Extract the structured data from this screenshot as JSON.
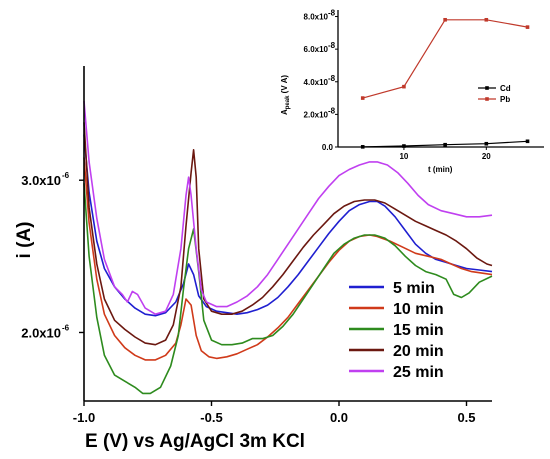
{
  "chart_data": [
    {
      "type": "line",
      "xlabel": "E (V) vs Ag/AgCl 3m KCl",
      "ylabel": "i (A)",
      "xlim": [
        -1.0,
        0.6
      ],
      "ylim": [
        1.55e-06,
        3.75e-06
      ],
      "x_ticks": [
        -1.0,
        -0.5,
        0.0,
        0.5
      ],
      "x_tick_labels": [
        "-1.0",
        "-0.5",
        "0.0",
        "0.5"
      ],
      "y_ticks": [
        2e-06,
        3e-06
      ],
      "y_tick_labels": [
        "2.0x10",
        "3.0x10"
      ],
      "y_tick_exponent": "-6",
      "legend_placement": "bottom-right",
      "series": [
        {
          "name": "5 min",
          "color": "#1f1fd0",
          "points": [
            [
              -1.0,
              3.3e-06
            ],
            [
              -0.98,
              2.92e-06
            ],
            [
              -0.95,
              2.6e-06
            ],
            [
              -0.92,
              2.42e-06
            ],
            [
              -0.88,
              2.3e-06
            ],
            [
              -0.84,
              2.22e-06
            ],
            [
              -0.8,
              2.16e-06
            ],
            [
              -0.76,
              2.12e-06
            ],
            [
              -0.72,
              2.11e-06
            ],
            [
              -0.68,
              2.13e-06
            ],
            [
              -0.64,
              2.2e-06
            ],
            [
              -0.61,
              2.32e-06
            ],
            [
              -0.59,
              2.45e-06
            ],
            [
              -0.57,
              2.38e-06
            ],
            [
              -0.55,
              2.24e-06
            ],
            [
              -0.52,
              2.17e-06
            ],
            [
              -0.48,
              2.14e-06
            ],
            [
              -0.44,
              2.13e-06
            ],
            [
              -0.4,
              2.12e-06
            ],
            [
              -0.36,
              2.13e-06
            ],
            [
              -0.32,
              2.15e-06
            ],
            [
              -0.28,
              2.18e-06
            ],
            [
              -0.24,
              2.23e-06
            ],
            [
              -0.2,
              2.3e-06
            ],
            [
              -0.16,
              2.38e-06
            ],
            [
              -0.12,
              2.47e-06
            ],
            [
              -0.08,
              2.56e-06
            ],
            [
              -0.04,
              2.65e-06
            ],
            [
              0.0,
              2.73e-06
            ],
            [
              0.04,
              2.8e-06
            ],
            [
              0.08,
              2.84e-06
            ],
            [
              0.12,
              2.86e-06
            ],
            [
              0.15,
              2.86e-06
            ],
            [
              0.18,
              2.83e-06
            ],
            [
              0.22,
              2.76e-06
            ],
            [
              0.26,
              2.67e-06
            ],
            [
              0.3,
              2.58e-06
            ],
            [
              0.34,
              2.52e-06
            ],
            [
              0.38,
              2.48e-06
            ],
            [
              0.42,
              2.46e-06
            ],
            [
              0.46,
              2.44e-06
            ],
            [
              0.5,
              2.42e-06
            ],
            [
              0.55,
              2.41e-06
            ],
            [
              0.6,
              2.4e-06
            ]
          ]
        },
        {
          "name": "10 min",
          "color": "#d03a1a",
          "points": [
            [
              -1.0,
              3.15e-06
            ],
            [
              -0.98,
              2.72e-06
            ],
            [
              -0.95,
              2.35e-06
            ],
            [
              -0.92,
              2.12e-06
            ],
            [
              -0.88,
              1.98e-06
            ],
            [
              -0.84,
              1.9e-06
            ],
            [
              -0.8,
              1.85e-06
            ],
            [
              -0.76,
              1.82e-06
            ],
            [
              -0.72,
              1.82e-06
            ],
            [
              -0.68,
              1.85e-06
            ],
            [
              -0.64,
              1.93e-06
            ],
            [
              -0.62,
              2.05e-06
            ],
            [
              -0.6,
              2.22e-06
            ],
            [
              -0.58,
              2.18e-06
            ],
            [
              -0.56,
              1.98e-06
            ],
            [
              -0.54,
              1.88e-06
            ],
            [
              -0.51,
              1.84e-06
            ],
            [
              -0.48,
              1.83e-06
            ],
            [
              -0.44,
              1.84e-06
            ],
            [
              -0.4,
              1.86e-06
            ],
            [
              -0.36,
              1.89e-06
            ],
            [
              -0.32,
              1.92e-06
            ],
            [
              -0.28,
              1.97e-06
            ],
            [
              -0.24,
              2.03e-06
            ],
            [
              -0.2,
              2.1e-06
            ],
            [
              -0.16,
              2.19e-06
            ],
            [
              -0.12,
              2.28e-06
            ],
            [
              -0.08,
              2.37e-06
            ],
            [
              -0.04,
              2.46e-06
            ],
            [
              0.0,
              2.54e-06
            ],
            [
              0.04,
              2.6e-06
            ],
            [
              0.08,
              2.63e-06
            ],
            [
              0.12,
              2.64e-06
            ],
            [
              0.15,
              2.63e-06
            ],
            [
              0.2,
              2.6e-06
            ],
            [
              0.25,
              2.56e-06
            ],
            [
              0.3,
              2.52e-06
            ],
            [
              0.35,
              2.5e-06
            ],
            [
              0.4,
              2.48e-06
            ],
            [
              0.44,
              2.45e-06
            ],
            [
              0.48,
              2.42e-06
            ],
            [
              0.52,
              2.4e-06
            ],
            [
              0.56,
              2.39e-06
            ],
            [
              0.6,
              2.38e-06
            ]
          ]
        },
        {
          "name": "15 min",
          "color": "#2e8b1e",
          "points": [
            [
              -1.0,
              2.98e-06
            ],
            [
              -0.98,
              2.5e-06
            ],
            [
              -0.95,
              2.1e-06
            ],
            [
              -0.92,
              1.85e-06
            ],
            [
              -0.88,
              1.72e-06
            ],
            [
              -0.84,
              1.68e-06
            ],
            [
              -0.8,
              1.64e-06
            ],
            [
              -0.77,
              1.6e-06
            ],
            [
              -0.74,
              1.6e-06
            ],
            [
              -0.7,
              1.64e-06
            ],
            [
              -0.66,
              1.78e-06
            ],
            [
              -0.63,
              1.98e-06
            ],
            [
              -0.61,
              2.28e-06
            ],
            [
              -0.59,
              2.55e-06
            ],
            [
              -0.57,
              2.68e-06
            ],
            [
              -0.55,
              2.4e-06
            ],
            [
              -0.53,
              2.08e-06
            ],
            [
              -0.5,
              1.95e-06
            ],
            [
              -0.46,
              1.92e-06
            ],
            [
              -0.42,
              1.92e-06
            ],
            [
              -0.38,
              1.93e-06
            ],
            [
              -0.34,
              1.96e-06
            ],
            [
              -0.3,
              1.96e-06
            ],
            [
              -0.26,
              1.98e-06
            ],
            [
              -0.22,
              2.04e-06
            ],
            [
              -0.18,
              2.12e-06
            ],
            [
              -0.14,
              2.22e-06
            ],
            [
              -0.1,
              2.32e-06
            ],
            [
              -0.06,
              2.42e-06
            ],
            [
              -0.02,
              2.52e-06
            ],
            [
              0.02,
              2.58e-06
            ],
            [
              0.06,
              2.62e-06
            ],
            [
              0.1,
              2.64e-06
            ],
            [
              0.14,
              2.64e-06
            ],
            [
              0.18,
              2.62e-06
            ],
            [
              0.22,
              2.57e-06
            ],
            [
              0.26,
              2.5e-06
            ],
            [
              0.3,
              2.44e-06
            ],
            [
              0.34,
              2.4e-06
            ],
            [
              0.38,
              2.38e-06
            ],
            [
              0.42,
              2.35e-06
            ],
            [
              0.45,
              2.25e-06
            ],
            [
              0.48,
              2.23e-06
            ],
            [
              0.51,
              2.26e-06
            ],
            [
              0.55,
              2.33e-06
            ],
            [
              0.6,
              2.37e-06
            ]
          ]
        },
        {
          "name": "20 min",
          "color": "#6b1810",
          "points": [
            [
              -1.0,
              3.38e-06
            ],
            [
              -0.98,
              2.82e-06
            ],
            [
              -0.95,
              2.45e-06
            ],
            [
              -0.92,
              2.22e-06
            ],
            [
              -0.88,
              2.08e-06
            ],
            [
              -0.84,
              2.02e-06
            ],
            [
              -0.8,
              1.97e-06
            ],
            [
              -0.76,
              1.93e-06
            ],
            [
              -0.72,
              1.92e-06
            ],
            [
              -0.68,
              1.95e-06
            ],
            [
              -0.65,
              2.05e-06
            ],
            [
              -0.62,
              2.3e-06
            ],
            [
              -0.6,
              2.7e-06
            ],
            [
              -0.58,
              3.05e-06
            ],
            [
              -0.57,
              3.2e-06
            ],
            [
              -0.56,
              3.02e-06
            ],
            [
              -0.55,
              2.55e-06
            ],
            [
              -0.53,
              2.22e-06
            ],
            [
              -0.5,
              2.14e-06
            ],
            [
              -0.46,
              2.12e-06
            ],
            [
              -0.42,
              2.12e-06
            ],
            [
              -0.38,
              2.14e-06
            ],
            [
              -0.34,
              2.18e-06
            ],
            [
              -0.3,
              2.23e-06
            ],
            [
              -0.26,
              2.3e-06
            ],
            [
              -0.22,
              2.38e-06
            ],
            [
              -0.18,
              2.47e-06
            ],
            [
              -0.14,
              2.56e-06
            ],
            [
              -0.1,
              2.64e-06
            ],
            [
              -0.06,
              2.71e-06
            ],
            [
              -0.02,
              2.78e-06
            ],
            [
              0.02,
              2.83e-06
            ],
            [
              0.06,
              2.86e-06
            ],
            [
              0.1,
              2.87e-06
            ],
            [
              0.14,
              2.87e-06
            ],
            [
              0.18,
              2.85e-06
            ],
            [
              0.22,
              2.81e-06
            ],
            [
              0.26,
              2.77e-06
            ],
            [
              0.3,
              2.73e-06
            ],
            [
              0.34,
              2.7e-06
            ],
            [
              0.38,
              2.67e-06
            ],
            [
              0.42,
              2.64e-06
            ],
            [
              0.46,
              2.6e-06
            ],
            [
              0.5,
              2.55e-06
            ],
            [
              0.54,
              2.49e-06
            ],
            [
              0.58,
              2.45e-06
            ],
            [
              0.6,
              2.44e-06
            ]
          ]
        },
        {
          "name": "25 min",
          "color": "#c040f0",
          "points": [
            [
              -1.0,
              3.52e-06
            ],
            [
              -0.98,
              3.12e-06
            ],
            [
              -0.95,
              2.75e-06
            ],
            [
              -0.92,
              2.48e-06
            ],
            [
              -0.88,
              2.3e-06
            ],
            [
              -0.85,
              2.25e-06
            ],
            [
              -0.83,
              2.2e-06
            ],
            [
              -0.81,
              2.27e-06
            ],
            [
              -0.79,
              2.25e-06
            ],
            [
              -0.76,
              2.16e-06
            ],
            [
              -0.72,
              2.12e-06
            ],
            [
              -0.68,
              2.14e-06
            ],
            [
              -0.65,
              2.25e-06
            ],
            [
              -0.62,
              2.55e-06
            ],
            [
              -0.6,
              2.9e-06
            ],
            [
              -0.59,
              3.02e-06
            ],
            [
              -0.58,
              2.9e-06
            ],
            [
              -0.56,
              2.55e-06
            ],
            [
              -0.54,
              2.28e-06
            ],
            [
              -0.52,
              2.2e-06
            ],
            [
              -0.48,
              2.17e-06
            ],
            [
              -0.44,
              2.17e-06
            ],
            [
              -0.4,
              2.2e-06
            ],
            [
              -0.36,
              2.24e-06
            ],
            [
              -0.32,
              2.3e-06
            ],
            [
              -0.28,
              2.38e-06
            ],
            [
              -0.24,
              2.48e-06
            ],
            [
              -0.2,
              2.58e-06
            ],
            [
              -0.16,
              2.68e-06
            ],
            [
              -0.12,
              2.78e-06
            ],
            [
              -0.08,
              2.88e-06
            ],
            [
              -0.04,
              2.96e-06
            ],
            [
              0.0,
              3.03e-06
            ],
            [
              0.04,
              3.07e-06
            ],
            [
              0.08,
              3.1e-06
            ],
            [
              0.12,
              3.12e-06
            ],
            [
              0.15,
              3.12e-06
            ],
            [
              0.19,
              3.1e-06
            ],
            [
              0.23,
              3.05e-06
            ],
            [
              0.27,
              2.98e-06
            ],
            [
              0.31,
              2.9e-06
            ],
            [
              0.35,
              2.84e-06
            ],
            [
              0.4,
              2.8e-06
            ],
            [
              0.45,
              2.78e-06
            ],
            [
              0.5,
              2.76e-06
            ],
            [
              0.55,
              2.76e-06
            ],
            [
              0.6,
              2.77e-06
            ]
          ]
        }
      ]
    },
    {
      "type": "line",
      "xlabel": "t (min)",
      "ylabel": "A",
      "ylabel_subscript": "peak",
      "ylabel_suffix": " (V A)",
      "xlim": [
        2,
        27
      ],
      "ylim": [
        0,
        8.4e-08
      ],
      "x_ticks": [
        10,
        20
      ],
      "x_tick_labels": [
        "10",
        "20"
      ],
      "y_ticks": [
        0,
        2e-08,
        4e-08,
        6e-08,
        8e-08
      ],
      "y_tick_labels": [
        "0.0",
        "2.0x10",
        "4.0x10",
        "6.0x10",
        "8.0x10"
      ],
      "y_tick_exponent": "-8",
      "legend_placement": "right",
      "series": [
        {
          "name": "Cd",
          "color": "#000000",
          "x": [
            5,
            10,
            15,
            20,
            25
          ],
          "values": [
            1e-10,
            6e-10,
            1.4e-09,
            2e-09,
            3.5e-09
          ]
        },
        {
          "name": "Pb",
          "color": "#c0392b",
          "x": [
            5,
            10,
            15,
            20,
            25
          ],
          "values": [
            3e-08,
            3.7e-08,
            7.8e-08,
            7.8e-08,
            7.35e-08
          ]
        }
      ]
    }
  ]
}
